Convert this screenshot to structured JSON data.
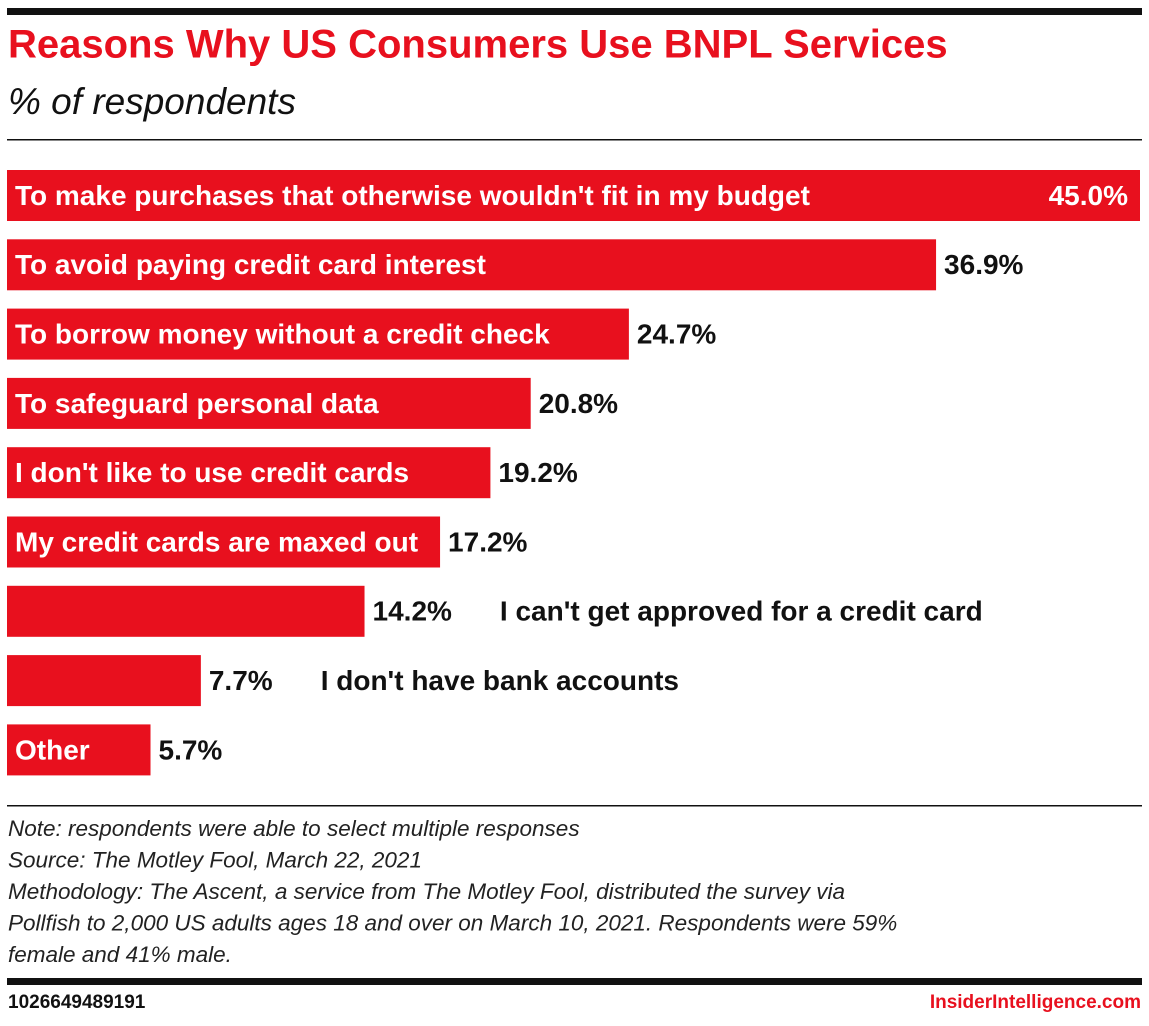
{
  "chart_data": {
    "type": "bar",
    "orientation": "horizontal",
    "title": "Reasons Why US Consumers Use BNPL Services",
    "subtitle": "% of respondents",
    "categories": [
      "To make purchases that otherwise wouldn't fit in my budget",
      "To avoid paying credit card interest",
      "To borrow money without a credit check",
      "To safeguard personal data",
      "I don't like to use credit cards",
      "My credit cards are maxed out",
      "I can't get approved for a credit card",
      "I don't have bank accounts",
      "Other"
    ],
    "values": [
      45.0,
      36.9,
      24.7,
      20.8,
      19.2,
      17.2,
      14.2,
      7.7,
      5.7
    ],
    "value_labels": [
      "45.0%",
      "36.9%",
      "24.7%",
      "20.8%",
      "19.2%",
      "17.2%",
      "14.2%",
      "7.7%",
      "5.7%"
    ],
    "color": "#e8101e",
    "xlim": [
      0,
      45
    ],
    "notes": [
      "Note: respondents were able to select multiple responses",
      "Source: The Motley Fool, March 22, 2021",
      "Methodology: The Ascent, a service from The Motley Fool, distributed the survey via",
      "Pollfish to 2,000 US adults ages 18 and over on March 10, 2021. Respondents were 59%",
      "female and 41% male."
    ],
    "chart_id": "1026649489191",
    "brand": "InsiderIntelligence.com"
  }
}
